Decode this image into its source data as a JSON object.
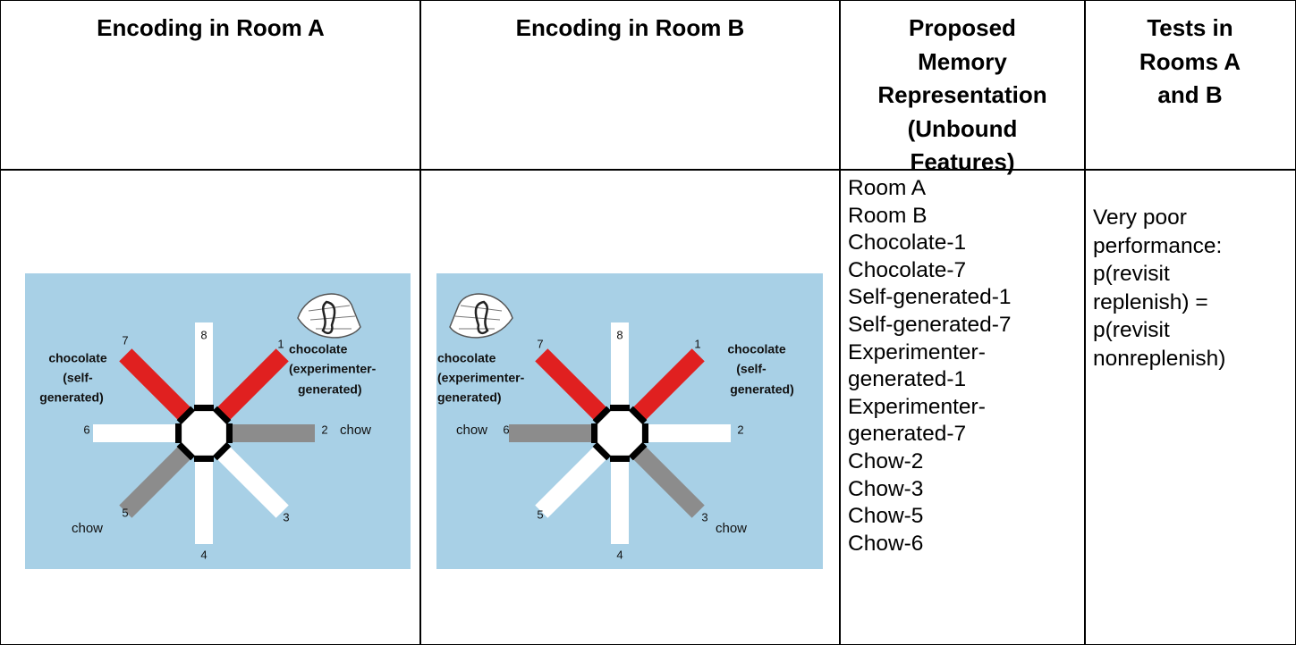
{
  "table": {
    "header": [
      [
        "Encoding in Room A"
      ],
      [
        "Encoding in Room B"
      ],
      [
        "Proposed",
        "Memory",
        "Representation",
        "(Unbound",
        "Features)"
      ],
      [
        "Tests in",
        "Rooms A",
        "and B"
      ]
    ],
    "rows": [
      [
        {
          "diagram": {
            "labels": [
              "8",
              "1",
              "chocolate",
              "(experimenter-",
              "generated)",
              "7",
              "chocolate",
              "(self-",
              "generated)",
              "6",
              "2",
              "chow",
              "5",
              "chow",
              "3",
              "4"
            ]
          }
        },
        {
          "diagram": {
            "labels": [
              "8",
              "1",
              "chocolate",
              "(self-",
              "generated)",
              "7",
              "chocolate",
              "(experimenter-",
              "generated)",
              "chow",
              "6",
              "2",
              "5",
              "3",
              "chow",
              "4"
            ]
          }
        },
        [
          "Room A",
          "Room B",
          "Chocolate-1",
          "Chocolate-7",
          "Self-generated-1",
          "Self-generated-7",
          "Experimenter-",
          "generated-1",
          "Experimenter-",
          "generated-7",
          "Chow-2",
          "Chow-3",
          "Chow-5",
          "Chow-6"
        ],
        [
          "Very poor",
          "performance:",
          "p(revisit",
          "replenish) =",
          "p(revisit",
          "nonreplenish)"
        ]
      ]
    ]
  }
}
